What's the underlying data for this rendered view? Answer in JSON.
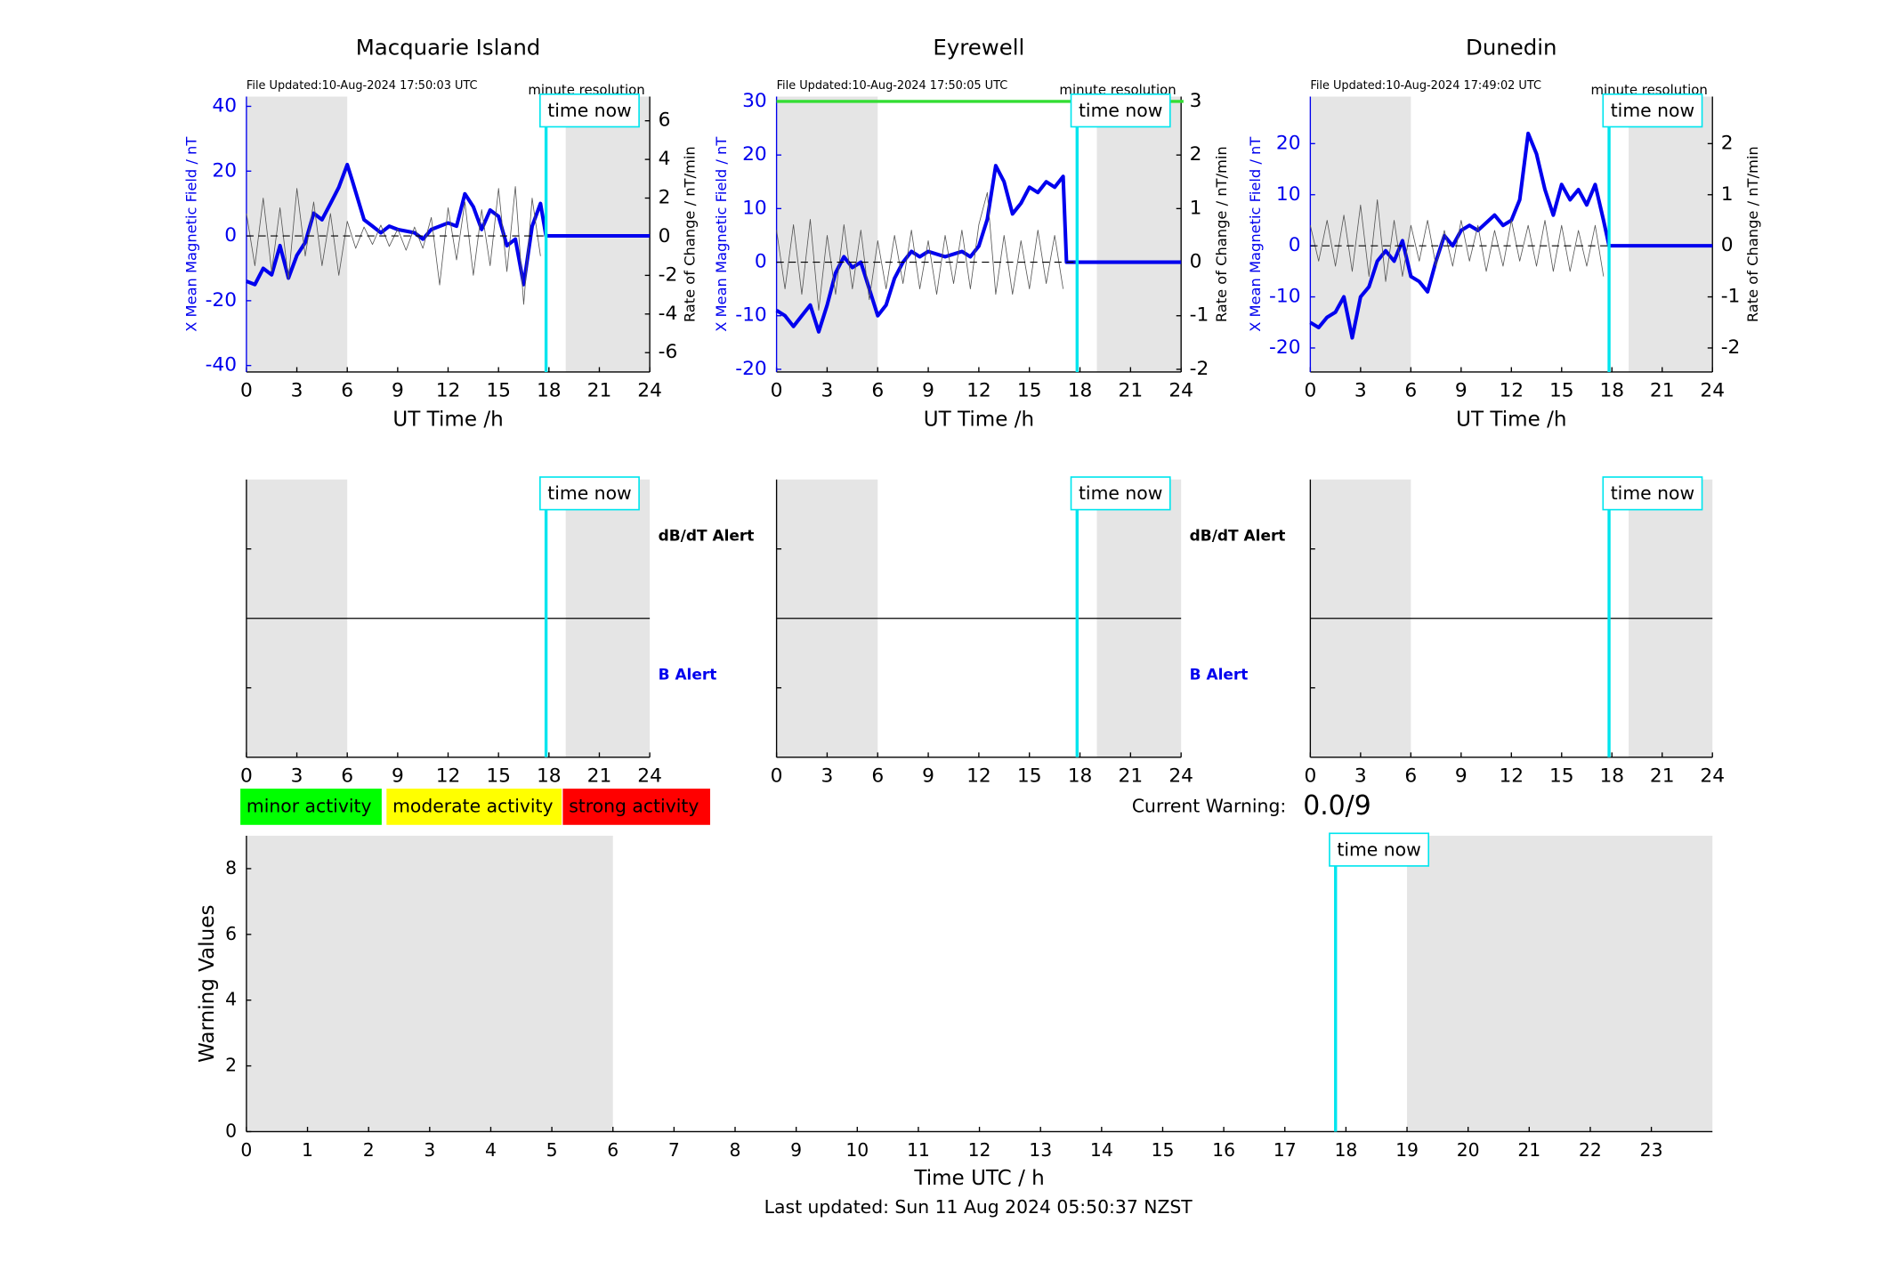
{
  "chart_data": [
    {
      "type": "line",
      "title": "Macquarie Island",
      "subtitle": "File Updated:10-Aug-2024 17:50:03 UTC",
      "annotation": "minute resolution",
      "time_now_label": "time now",
      "time_now": 17.83,
      "shaded": [
        [
          0,
          6
        ],
        [
          19,
          24
        ]
      ],
      "xlabel": "UT Time /h",
      "ylabel": "X Mean Magnetic Field / nT",
      "y2label": "Rate of Change / nT/min",
      "xlim": [
        0,
        24
      ],
      "xticks": [
        0,
        3,
        6,
        9,
        12,
        15,
        18,
        21,
        24
      ],
      "ylim": [
        -42,
        43
      ],
      "yticks": [
        -40,
        -20,
        0,
        20,
        40
      ],
      "y2lim": [
        -7,
        7.25
      ],
      "y2ticks": [
        -6,
        -4,
        -2,
        0,
        2,
        4,
        6
      ],
      "reference_line": 0,
      "series": [
        {
          "color": "#0000ee",
          "x": [
            0,
            0.5,
            1,
            1.5,
            2,
            2.5,
            3,
            3.5,
            4,
            4.5,
            5,
            5.5,
            6,
            6.3,
            7,
            7.5,
            8,
            8.5,
            9,
            10,
            10.5,
            11,
            12,
            12.5,
            13,
            13.5,
            14,
            14.5,
            15,
            15.5,
            16,
            16.5,
            17,
            17.5,
            17.83,
            24
          ],
          "values": [
            -14,
            -15,
            -10,
            -12,
            -3,
            -13,
            -6,
            -2,
            7,
            5,
            10,
            15,
            22,
            17,
            5,
            3,
            1,
            3,
            2,
            1,
            -1,
            2,
            4,
            3,
            13,
            9,
            2,
            8,
            6,
            -3,
            -1,
            -15,
            3,
            10,
            0,
            0
          ]
        },
        {
          "color": "#555555",
          "axis": "y2",
          "x": [
            0,
            0.5,
            1,
            1.5,
            2,
            2.5,
            3,
            3.5,
            4,
            4.5,
            5,
            5.5,
            6,
            6.5,
            7,
            7.5,
            8,
            8.5,
            9,
            9.5,
            10,
            10.5,
            11,
            11.5,
            12,
            12.5,
            13,
            13.5,
            14,
            14.5,
            15,
            15.5,
            16,
            16.5,
            17,
            17.5
          ],
          "values": [
            1.2,
            -1.5,
            2,
            -1.8,
            1.5,
            -2.2,
            2.5,
            -1,
            1.8,
            -1.5,
            1.2,
            -2,
            0.8,
            -0.6,
            0.5,
            -0.4,
            0.6,
            -0.5,
            0.4,
            -0.7,
            0.5,
            -0.6,
            1,
            -2.5,
            1.5,
            -1.2,
            1.8,
            -2,
            1.4,
            -1.5,
            2.5,
            -1.8,
            2.6,
            -3.5,
            2,
            -1
          ]
        }
      ]
    },
    {
      "type": "line",
      "title": "Eyrewell",
      "subtitle": "File Updated:10-Aug-2024 17:50:05 UTC",
      "annotation": "minute resolution",
      "time_now_label": "time now",
      "time_now": 17.83,
      "shaded": [
        [
          0,
          6
        ],
        [
          19,
          24
        ]
      ],
      "xlabel": "UT Time /h",
      "ylabel": "X Mean Magnetic Field / nT",
      "y2label": "Rate of Change / nT/min",
      "xlim": [
        0,
        24
      ],
      "xticks": [
        0,
        3,
        6,
        9,
        12,
        15,
        18,
        21,
        24
      ],
      "ylim": [
        -20.5,
        30.9
      ],
      "yticks": [
        -20,
        -10,
        0,
        10,
        20,
        30
      ],
      "y2lim": [
        -2.05,
        3.09
      ],
      "y2ticks": [
        -2,
        -1,
        0,
        1,
        2,
        3
      ],
      "reference_line": 0,
      "hline": {
        "value": 30,
        "color": "#33dd33"
      },
      "series": [
        {
          "color": "#0000ee",
          "x": [
            0,
            0.5,
            1,
            1.5,
            2,
            2.5,
            3,
            3.5,
            4,
            4.5,
            5,
            5.5,
            6,
            6.5,
            7,
            7.5,
            8,
            8.5,
            9,
            10,
            11,
            11.5,
            12,
            12.5,
            13,
            13.5,
            14,
            14.5,
            15,
            15.5,
            16,
            16.5,
            17,
            17.2,
            24
          ],
          "values": [
            -9,
            -10,
            -12,
            -10,
            -8,
            -13,
            -8,
            -2,
            1,
            -1,
            0,
            -5,
            -10,
            -8,
            -3,
            0,
            2,
            1,
            2,
            1,
            2,
            1,
            3,
            8,
            18,
            15,
            9,
            11,
            14,
            13,
            15,
            14,
            16,
            0,
            0
          ]
        },
        {
          "color": "#555555",
          "axis": "y2",
          "x": [
            0,
            0.5,
            1,
            1.5,
            2,
            2.5,
            3,
            3.5,
            4,
            4.5,
            5,
            5.5,
            6,
            6.5,
            7,
            7.5,
            8,
            8.5,
            9,
            9.5,
            10,
            10.5,
            11,
            11.5,
            12,
            12.5,
            13,
            13.5,
            14,
            14.5,
            15,
            15.5,
            16,
            16.5,
            17
          ],
          "values": [
            0.6,
            -0.5,
            0.7,
            -0.6,
            0.8,
            -0.9,
            0.5,
            -0.6,
            0.7,
            -0.5,
            0.6,
            -0.7,
            0.4,
            -0.5,
            0.5,
            -0.4,
            0.6,
            -0.5,
            0.4,
            -0.6,
            0.5,
            -0.4,
            0.6,
            -0.5,
            0.7,
            1.3,
            -0.6,
            0.5,
            -0.6,
            0.4,
            -0.5,
            0.6,
            -0.4,
            0.5,
            -0.5
          ]
        }
      ]
    },
    {
      "type": "line",
      "title": "Dunedin",
      "subtitle": "File Updated:10-Aug-2024 17:49:02 UTC",
      "annotation": "minute resolution",
      "time_now_label": "time now",
      "time_now": 17.83,
      "shaded": [
        [
          0,
          6
        ],
        [
          19,
          24
        ]
      ],
      "xlabel": "UT Time /h",
      "ylabel": "X Mean Magnetic Field / nT",
      "y2label": "Rate of Change / nT/min",
      "xlim": [
        0,
        24
      ],
      "xticks": [
        0,
        3,
        6,
        9,
        12,
        15,
        18,
        21,
        24
      ],
      "ylim": [
        -24.7,
        29.2
      ],
      "yticks": [
        -20,
        -10,
        0,
        10,
        20
      ],
      "y2lim": [
        -2.47,
        2.92
      ],
      "y2ticks": [
        -2,
        -1,
        0,
        1,
        2
      ],
      "reference_line": 0,
      "series": [
        {
          "color": "#0000ee",
          "x": [
            0,
            0.5,
            1,
            1.5,
            2,
            2.5,
            3,
            3.5,
            4,
            4.5,
            5,
            5.5,
            6,
            6.5,
            7,
            7.5,
            8,
            8.5,
            9,
            9.5,
            10,
            11,
            11.5,
            12,
            12.5,
            13,
            13.5,
            14,
            14.5,
            15,
            15.5,
            16,
            16.5,
            17,
            17.5,
            17.83,
            24
          ],
          "values": [
            -15,
            -16,
            -14,
            -13,
            -10,
            -18,
            -10,
            -8,
            -3,
            -1,
            -3,
            1,
            -6,
            -7,
            -9,
            -3,
            2,
            0,
            3,
            4,
            3,
            6,
            4,
            5,
            9,
            22,
            18,
            11,
            6,
            12,
            9,
            11,
            8,
            12,
            5,
            0,
            0
          ]
        },
        {
          "color": "#555555",
          "axis": "y2",
          "x": [
            0,
            0.5,
            1,
            1.5,
            2,
            2.5,
            3,
            3.5,
            4,
            4.5,
            5,
            5.5,
            6,
            6.5,
            7,
            7.5,
            8,
            8.5,
            9,
            9.5,
            10,
            10.5,
            11,
            11.5,
            12,
            12.5,
            13,
            13.5,
            14,
            14.5,
            15,
            15.5,
            16,
            16.5,
            17,
            17.5
          ],
          "values": [
            0.4,
            -0.3,
            0.5,
            -0.4,
            0.6,
            -0.5,
            0.8,
            -0.6,
            0.9,
            -0.7,
            0.5,
            -0.6,
            0.4,
            -0.3,
            0.5,
            -0.4,
            0.3,
            -0.4,
            0.5,
            -0.3,
            0.4,
            -0.5,
            0.3,
            -0.4,
            0.5,
            -0.3,
            0.4,
            -0.4,
            0.5,
            -0.5,
            0.4,
            -0.5,
            0.3,
            -0.4,
            0.4,
            -0.6
          ]
        }
      ]
    },
    {
      "type": "alert",
      "time_now_label": "time now",
      "time_now": 17.83,
      "shaded": [
        [
          0,
          6
        ],
        [
          19,
          24
        ]
      ],
      "xlim": [
        0,
        24
      ],
      "xticks": [
        0,
        3,
        6,
        9,
        12,
        15,
        18,
        21,
        24
      ],
      "labels": [
        "dB/dT Alert",
        "B Alert"
      ]
    },
    {
      "type": "alert",
      "time_now_label": "time now",
      "time_now": 17.83,
      "shaded": [
        [
          0,
          6
        ],
        [
          19,
          24
        ]
      ],
      "xlim": [
        0,
        24
      ],
      "xticks": [
        0,
        3,
        6,
        9,
        12,
        15,
        18,
        21,
        24
      ],
      "labels": [
        "dB/dT Alert",
        "B Alert"
      ]
    },
    {
      "type": "alert",
      "time_now_label": "time now",
      "time_now": 17.83,
      "shaded": [
        [
          0,
          6
        ],
        [
          19,
          24
        ]
      ],
      "xlim": [
        0,
        24
      ],
      "xticks": [
        0,
        3,
        6,
        9,
        12,
        15,
        18,
        21,
        24
      ]
    },
    {
      "type": "bar",
      "time_now_label": "time now",
      "time_now": 17.83,
      "shaded": [
        [
          0,
          6
        ],
        [
          19,
          24
        ]
      ],
      "xlabel": "Time UTC / h",
      "ylabel": "Warning Values",
      "xlim": [
        0,
        24
      ],
      "xticks": [
        0,
        1,
        2,
        3,
        4,
        5,
        6,
        7,
        8,
        9,
        10,
        11,
        12,
        13,
        14,
        15,
        16,
        17,
        18,
        19,
        20,
        21,
        22,
        23
      ],
      "ylim": [
        0,
        9
      ],
      "yticks": [
        0,
        2,
        4,
        6,
        8
      ]
    }
  ],
  "activity_levels": [
    {
      "label": "minor activity",
      "color": "#00ff00"
    },
    {
      "label": "moderate activity",
      "color": "#ffff00"
    },
    {
      "label": "strong activity",
      "color": "#ff0000"
    }
  ],
  "current_warning": {
    "label": "Current Warning:",
    "value": "0.0/9"
  },
  "footer": "Last updated: Sun 11 Aug 2024 05:50:37 NZST"
}
